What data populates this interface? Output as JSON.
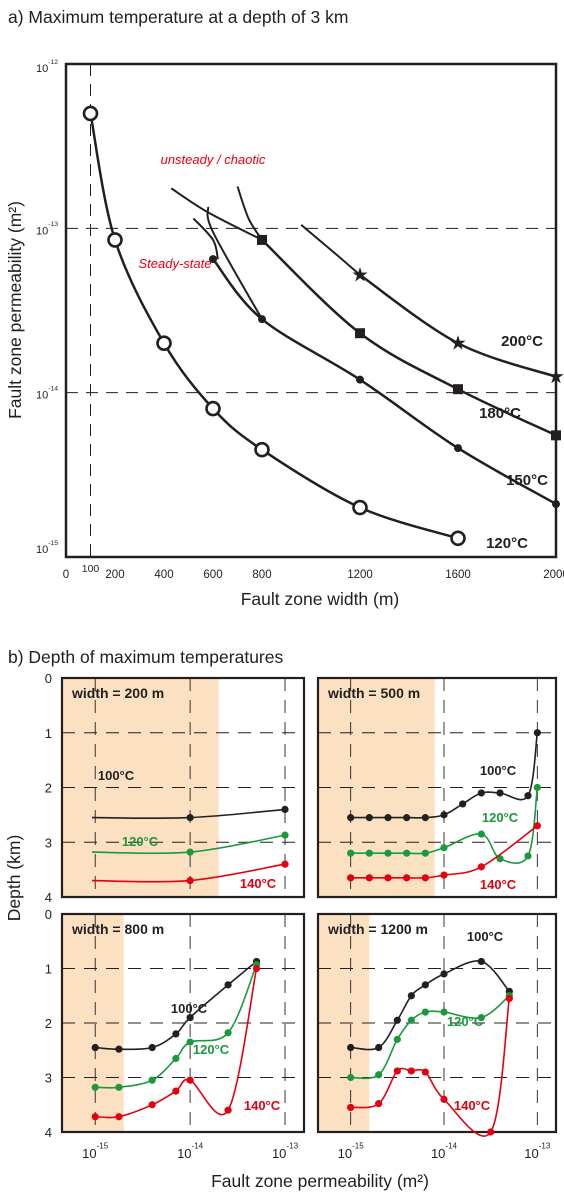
{
  "chart_data": [
    {
      "type": "line",
      "title": "a)  Maximum temperature at a depth of 3 km",
      "xlabel": "Fault zone width  (m)",
      "ylabel": "Fault zone permeability  (m²)",
      "xlim": [
        0,
        2000
      ],
      "ylim_exponent": [
        -15,
        -12
      ],
      "yscale": "log",
      "x_ticks": [
        "0",
        "100",
        "200",
        "400",
        "600",
        "800",
        "1200",
        "1600",
        "2000"
      ],
      "y_ticks": [
        {
          "base": "10",
          "exp": "-12"
        },
        {
          "base": "10",
          "exp": "-13"
        },
        {
          "base": "10",
          "exp": "-14"
        },
        {
          "base": "10",
          "exp": "-15"
        }
      ],
      "annotations": [
        "unsteady / chaotic",
        "Steady-state"
      ],
      "colors": {
        "curve": "#231f20",
        "annotation": "#e3000f",
        "reference": "#231f20"
      },
      "series": [
        {
          "name": "120°C",
          "marker": "circle-open",
          "x": [
            100,
            200,
            400,
            600,
            800,
            1200,
            1600
          ],
          "y": [
            5e-13,
            8.5e-14,
            2e-14,
            8e-15,
            4.5e-15,
            2e-15,
            1.3e-15
          ]
        },
        {
          "name": "150°C",
          "marker": "dot",
          "x": [
            600,
            800,
            1200,
            1600,
            2000
          ],
          "y": [
            6.5e-14,
            2.8e-14,
            1.2e-14,
            4.6e-15,
            2.1e-15
          ]
        },
        {
          "name": "180°C",
          "marker": "square",
          "x": [
            800,
            1200,
            1600,
            2000
          ],
          "y": [
            8.5e-14,
            2.3e-14,
            1.05e-14,
            5.5e-15
          ]
        },
        {
          "name": "200°C",
          "marker": "star",
          "x": [
            1200,
            1600,
            2000
          ],
          "y": [
            5.2e-14,
            2e-14,
            1.25e-14
          ]
        }
      ]
    },
    {
      "type": "line",
      "title": "b) Depth of maximum temperatures",
      "xlabel": "Fault zone permeability  (m²)",
      "ylabel": "Depth  (km)",
      "xscale": "log",
      "xlim_exponent": [
        -15.35,
        -12.8
      ],
      "ylim": [
        0,
        4
      ],
      "y_ticks": [
        "0",
        "1",
        "2",
        "3",
        "4"
      ],
      "x_ticks": [
        {
          "base": "10",
          "exp": "-15"
        },
        {
          "base": "10",
          "exp": "-14"
        },
        {
          "base": "10",
          "exp": "-13"
        }
      ],
      "colors": {
        "100°C": "#231f20",
        "120°C": "#1b9a3d",
        "140°C": "#e3000f",
        "shade": "#fbe1c2"
      },
      "panels": [
        {
          "label": "width = 200 m",
          "shade_upto_logk": -13.7,
          "series": [
            {
              "name": "100°C",
              "logk": [
                -14,
                -13
              ],
              "depth": [
                2.55,
                2.4
              ]
            },
            {
              "name": "120°C",
              "logk": [
                -14,
                -13
              ],
              "depth": [
                3.18,
                2.87
              ]
            },
            {
              "name": "140°C",
              "logk": [
                -14,
                -13
              ],
              "depth": [
                3.7,
                3.4
              ]
            }
          ]
        },
        {
          "label": "width = 500 m",
          "shade_upto_logk": -14.1,
          "series": [
            {
              "name": "100°C",
              "logk": [
                -15,
                -14.8,
                -14.6,
                -14.4,
                -14.2,
                -14,
                -13.8,
                -13.6,
                -13.4,
                -13.1,
                -13
              ],
              "depth": [
                2.55,
                2.55,
                2.55,
                2.55,
                2.55,
                2.5,
                2.3,
                2.1,
                2.1,
                2.15,
                1
              ]
            },
            {
              "name": "120°C",
              "logk": [
                -15,
                -14.8,
                -14.6,
                -14.4,
                -14.2,
                -14,
                -13.6,
                -13.4,
                -13.1,
                -13
              ],
              "depth": [
                3.2,
                3.2,
                3.2,
                3.2,
                3.2,
                3.1,
                2.85,
                3.3,
                3.25,
                2
              ]
            },
            {
              "name": "140°C",
              "logk": [
                -15,
                -14.8,
                -14.6,
                -14.4,
                -14.2,
                -14,
                -13.6,
                -13
              ],
              "depth": [
                3.65,
                3.65,
                3.65,
                3.65,
                3.65,
                3.6,
                3.45,
                2.7
              ]
            }
          ]
        },
        {
          "label": "width = 800 m",
          "shade_upto_logk": -14.7,
          "series": [
            {
              "name": "100°C",
              "logk": [
                -15,
                -14.75,
                -14.4,
                -14.15,
                -14,
                -13.6,
                -13.3
              ],
              "depth": [
                2.45,
                2.48,
                2.45,
                2.2,
                1.9,
                1.3,
                0.87
              ]
            },
            {
              "name": "120°C",
              "logk": [
                -15,
                -14.75,
                -14.4,
                -14.15,
                -14,
                -13.6,
                -13.3
              ],
              "depth": [
                3.18,
                3.18,
                3.05,
                2.65,
                2.35,
                2.18,
                0.93
              ]
            },
            {
              "name": "140°C",
              "logk": [
                -15,
                -14.75,
                -14.4,
                -14.15,
                -14,
                -13.6,
                -13.3
              ],
              "depth": [
                3.72,
                3.72,
                3.5,
                3.25,
                3.05,
                3.6,
                1
              ]
            }
          ]
        },
        {
          "label": "width = 1200 m",
          "shade_upto_logk": -14.8,
          "series": [
            {
              "name": "100°C",
              "logk": [
                -15,
                -14.7,
                -14.5,
                -14.35,
                -14.2,
                -14,
                -13.6,
                -13.3
              ],
              "depth": [
                2.45,
                2.45,
                1.95,
                1.5,
                1.3,
                1.1,
                0.87,
                1.42
              ]
            },
            {
              "name": "120°C",
              "logk": [
                -15,
                -14.7,
                -14.5,
                -14.35,
                -14.2,
                -14,
                -13.6,
                -13.3
              ],
              "depth": [
                3,
                2.95,
                2.3,
                1.95,
                1.8,
                1.8,
                1.9,
                1.5
              ]
            },
            {
              "name": "140°C",
              "logk": [
                -15,
                -14.7,
                -14.5,
                -14.35,
                -14.2,
                -14,
                -13.5,
                -13.3
              ],
              "depth": [
                3.55,
                3.48,
                2.88,
                2.88,
                2.9,
                3.4,
                4,
                1.55
              ]
            }
          ]
        }
      ]
    }
  ]
}
